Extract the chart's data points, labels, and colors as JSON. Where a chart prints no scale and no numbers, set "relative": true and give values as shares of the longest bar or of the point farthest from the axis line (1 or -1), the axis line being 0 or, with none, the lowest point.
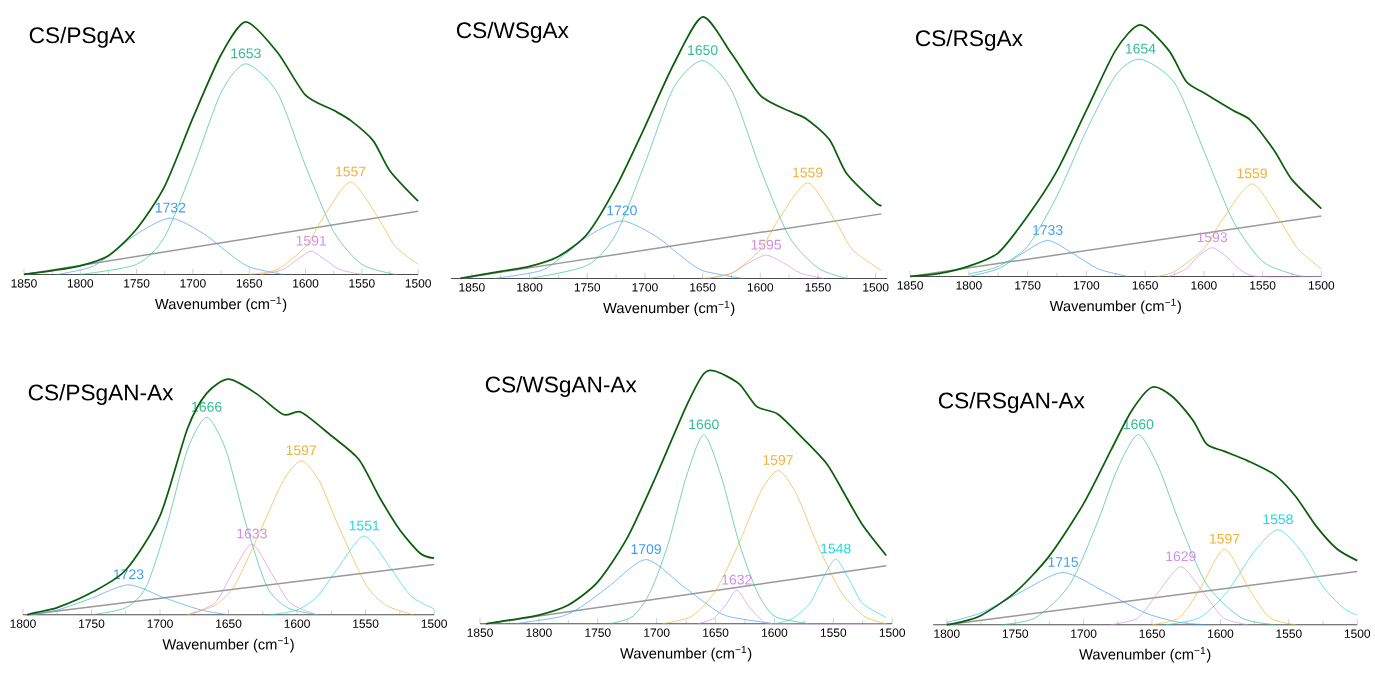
{
  "chart_data": [
    {
      "type": "line",
      "relative": true,
      "title": "CS/PSgAx",
      "xlabel": "Wavenumber (cm$^{−1}$)",
      "xlim": [
        1850,
        1500
      ],
      "xticks": [
        1850,
        1800,
        1750,
        1700,
        1650,
        1600,
        1550,
        1500
      ],
      "series": [
        {
          "color": "#999999",
          "x": [
            1850,
            1500
          ],
          "values": [
            0,
            0.25
          ]
        },
        {
          "name": "1732",
          "color": "#3d9df0",
          "x": [
            1820,
            1790,
            1770,
            1750,
            1720,
            1690,
            1670,
            1650,
            1620
          ],
          "values": [
            0,
            0.03,
            0.09,
            0.16,
            0.223,
            0.16,
            0.09,
            0.03,
            0
          ]
        },
        {
          "name": "1653",
          "color": "#2fbf8c",
          "x": [
            1800,
            1750,
            1725,
            1700,
            1675,
            1653,
            1625,
            1600,
            1575,
            1550,
            1520
          ],
          "values": [
            0,
            0.04,
            0.15,
            0.42,
            0.72,
            0.834,
            0.72,
            0.43,
            0.17,
            0.04,
            0
          ]
        },
        {
          "name": "1591",
          "color": "#d08ee8",
          "x": [
            1640,
            1620,
            1607,
            1595,
            1583,
            1570,
            1550
          ],
          "values": [
            0,
            0.02,
            0.06,
            0.092,
            0.06,
            0.02,
            0
          ]
        },
        {
          "name": "1557",
          "color": "#f0b030",
          "x": [
            1650,
            1625,
            1600,
            1585,
            1560,
            1535,
            1520,
            1500
          ],
          "values": [
            0,
            0.02,
            0.11,
            0.22,
            0.366,
            0.22,
            0.11,
            0.04
          ]
        },
        {
          "color": "#0b5e0b",
          "x": [
            1850,
            1825,
            1800,
            1775,
            1750,
            1725,
            1700,
            1675,
            1653,
            1625,
            1600,
            1575,
            1560,
            1540,
            1525,
            1500
          ],
          "values": [
            0,
            0.015,
            0.034,
            0.074,
            0.18,
            0.35,
            0.62,
            0.87,
            1.0,
            0.88,
            0.71,
            0.65,
            0.61,
            0.53,
            0.41,
            0.29
          ]
        }
      ]
    },
    {
      "type": "line",
      "relative": true,
      "title": "CS/WSgAx",
      "xlabel": "Wavenumber (cm$^{−1}$)",
      "xlim": [
        1868,
        1490
      ],
      "xticks": [
        1850,
        1800,
        1750,
        1700,
        1650,
        1600,
        1550,
        1500
      ],
      "series": [
        {
          "color": "#999999",
          "x": [
            1860,
            1495
          ],
          "values": [
            0,
            0.247
          ]
        },
        {
          "name": "1720",
          "color": "#3d9df0",
          "x": [
            1830,
            1790,
            1770,
            1750,
            1720,
            1690,
            1670,
            1650,
            1615
          ],
          "values": [
            0,
            0.03,
            0.09,
            0.16,
            0.22,
            0.16,
            0.09,
            0.03,
            0
          ]
        },
        {
          "name": "1650",
          "color": "#2fbf8c",
          "x": [
            1800,
            1750,
            1725,
            1700,
            1675,
            1650,
            1625,
            1600,
            1575,
            1550,
            1525
          ],
          "values": [
            0,
            0.05,
            0.17,
            0.44,
            0.73,
            0.833,
            0.72,
            0.42,
            0.16,
            0.04,
            0
          ]
        },
        {
          "name": "1595",
          "color": "#d08ee8",
          "x": [
            1645,
            1625,
            1610,
            1595,
            1580,
            1565,
            1545
          ],
          "values": [
            0,
            0.02,
            0.06,
            0.089,
            0.06,
            0.02,
            0
          ]
        },
        {
          "name": "1559",
          "color": "#f0b030",
          "x": [
            1650,
            1625,
            1600,
            1585,
            1559,
            1535,
            1520,
            1495
          ],
          "values": [
            0,
            0.02,
            0.11,
            0.22,
            0.365,
            0.22,
            0.11,
            0.03
          ]
        },
        {
          "color": "#0b5e0b",
          "x": [
            1860,
            1825,
            1800,
            1775,
            1750,
            1725,
            1700,
            1675,
            1650,
            1625,
            1600,
            1575,
            1560,
            1540,
            1525,
            1500,
            1495
          ],
          "values": [
            0,
            0.027,
            0.046,
            0.084,
            0.17,
            0.35,
            0.58,
            0.82,
            1.0,
            0.86,
            0.7,
            0.64,
            0.61,
            0.53,
            0.4,
            0.29,
            0.28
          ]
        }
      ]
    },
    {
      "type": "line",
      "relative": true,
      "title": "CS/RSgAx",
      "xlabel": "Wavenumber (cm$^{−1}$)",
      "xlim": [
        1850,
        1500
      ],
      "xticks": [
        1850,
        1800,
        1750,
        1700,
        1650,
        1600,
        1550,
        1500
      ],
      "series": [
        {
          "color": "#999999",
          "x": [
            1850,
            1500
          ],
          "values": [
            0,
            0.24
          ]
        },
        {
          "name": "1733",
          "color": "#3d9df0",
          "x": [
            1800,
            1775,
            1755,
            1733,
            1711,
            1690,
            1665
          ],
          "values": [
            0,
            0.03,
            0.09,
            0.143,
            0.09,
            0.03,
            0
          ]
        },
        {
          "name": "1654",
          "color": "#2fbf8c",
          "x": [
            1800,
            1775,
            1750,
            1725,
            1700,
            1675,
            1654,
            1625,
            1600,
            1575,
            1550,
            1525,
            1515
          ],
          "values": [
            0.01,
            0.04,
            0.12,
            0.32,
            0.58,
            0.8,
            0.864,
            0.77,
            0.5,
            0.22,
            0.06,
            0.01,
            0
          ]
        },
        {
          "name": "1593",
          "color": "#d08ee8",
          "x": [
            1630,
            1615,
            1605,
            1593,
            1581,
            1570,
            1555,
            1500
          ],
          "values": [
            0,
            0.03,
            0.08,
            0.114,
            0.08,
            0.03,
            0,
            0
          ]
        },
        {
          "name": "1559",
          "color": "#f0b030",
          "x": [
            1640,
            1625,
            1600,
            1585,
            1559,
            1535,
            1520,
            1500
          ],
          "values": [
            0,
            0.02,
            0.11,
            0.22,
            0.368,
            0.22,
            0.11,
            0.03
          ]
        },
        {
          "color": "#0b5e0b",
          "x": [
            1850,
            1825,
            1800,
            1775,
            1750,
            1725,
            1700,
            1675,
            1654,
            1630,
            1615,
            1600,
            1575,
            1560,
            1540,
            1525,
            1500
          ],
          "values": [
            0,
            0.012,
            0.041,
            0.094,
            0.24,
            0.42,
            0.66,
            0.9,
            1.0,
            0.9,
            0.775,
            0.73,
            0.66,
            0.62,
            0.5,
            0.385,
            0.27
          ]
        }
      ]
    },
    {
      "type": "line",
      "relative": true,
      "title": "CS/PSgAN-Ax",
      "xlabel": "Wavenumber (cm$^{−1}$)",
      "xlim": [
        1800,
        1500
      ],
      "xticks": [
        1800,
        1750,
        1700,
        1650,
        1600,
        1550,
        1500
      ],
      "series": [
        {
          "color": "#999999",
          "x": [
            1797,
            1500
          ],
          "values": [
            0,
            0.213
          ]
        },
        {
          "name": "1723",
          "color": "#3d9df0",
          "x": [
            1795,
            1775,
            1750,
            1723,
            1696,
            1670,
            1650
          ],
          "values": [
            0,
            0.02,
            0.07,
            0.127,
            0.07,
            0.02,
            0
          ]
        },
        {
          "name": "1666",
          "color": "#2fbf8c",
          "x": [
            1750,
            1725,
            1710,
            1695,
            1680,
            1666,
            1652,
            1637,
            1622,
            1607,
            1585
          ],
          "values": [
            0,
            0.03,
            0.12,
            0.38,
            0.7,
            0.838,
            0.7,
            0.38,
            0.12,
            0.03,
            0
          ]
        },
        {
          "name": "1633",
          "color": "#d08ee8",
          "x": [
            1680,
            1660,
            1647,
            1633,
            1619,
            1605,
            1585
          ],
          "values": [
            0,
            0.05,
            0.18,
            0.3,
            0.18,
            0.05,
            0
          ]
        },
        {
          "name": "1597",
          "color": "#f0b030",
          "x": [
            1680,
            1660,
            1645,
            1625,
            1610,
            1597,
            1584,
            1570,
            1550,
            1535,
            1515
          ],
          "values": [
            0,
            0.04,
            0.13,
            0.38,
            0.57,
            0.654,
            0.57,
            0.38,
            0.13,
            0.04,
            0
          ]
        },
        {
          "name": "1551",
          "color": "#22d8e0",
          "x": [
            1620,
            1600,
            1585,
            1570,
            1551,
            1532,
            1517,
            1500
          ],
          "values": [
            0,
            0.02,
            0.08,
            0.2,
            0.334,
            0.2,
            0.08,
            0.025
          ]
        },
        {
          "color": "#0b5e0b",
          "x": [
            1797,
            1790,
            1775,
            1750,
            1725,
            1700,
            1680,
            1666,
            1650,
            1630,
            1610,
            1597,
            1575,
            1555,
            1540,
            1525,
            1510,
            1500
          ],
          "values": [
            0,
            0.01,
            0.03,
            0.094,
            0.19,
            0.42,
            0.79,
            0.94,
            1.0,
            0.94,
            0.85,
            0.86,
            0.76,
            0.66,
            0.5,
            0.36,
            0.26,
            0.24
          ]
        }
      ]
    },
    {
      "type": "line",
      "relative": true,
      "title": "CS/WSgAN-Ax",
      "xlabel": "Wavenumber (cm$^{−1}$)",
      "xlim": [
        1850,
        1500
      ],
      "xticks": [
        1850,
        1800,
        1750,
        1700,
        1650,
        1600,
        1550,
        1500
      ],
      "series": [
        {
          "color": "#999999",
          "x": [
            1845,
            1505
          ],
          "values": [
            0,
            0.23
          ]
        },
        {
          "name": "1709",
          "color": "#3d9df0",
          "x": [
            1820,
            1780,
            1760,
            1740,
            1709,
            1678,
            1658,
            1640,
            1600
          ],
          "values": [
            0,
            0.03,
            0.08,
            0.15,
            0.254,
            0.15,
            0.08,
            0.03,
            0
          ]
        },
        {
          "name": "1660",
          "color": "#2fbf8c",
          "x": [
            1740,
            1720,
            1705,
            1690,
            1675,
            1660,
            1645,
            1630,
            1615,
            1600,
            1570
          ],
          "values": [
            0,
            0.03,
            0.13,
            0.32,
            0.58,
            0.748,
            0.58,
            0.32,
            0.13,
            0.03,
            0
          ]
        },
        {
          "name": "1632",
          "color": "#d08ee8",
          "x": [
            1665,
            1652,
            1642,
            1632,
            1622,
            1612,
            1600,
            1505
          ],
          "values": [
            0,
            0.02,
            0.07,
            0.133,
            0.07,
            0.02,
            0,
            0
          ]
        },
        {
          "name": "1597",
          "color": "#f0b030",
          "x": [
            1695,
            1670,
            1650,
            1630,
            1612,
            1597,
            1582,
            1564,
            1544,
            1524,
            1505
          ],
          "values": [
            0,
            0.03,
            0.13,
            0.32,
            0.52,
            0.607,
            0.52,
            0.32,
            0.13,
            0.03,
            0
          ]
        },
        {
          "name": "1548",
          "color": "#22d8e0",
          "x": [
            1600,
            1585,
            1570,
            1560,
            1548,
            1536,
            1525,
            1505
          ],
          "values": [
            0,
            0.02,
            0.08,
            0.17,
            0.256,
            0.17,
            0.08,
            0.025
          ]
        },
        {
          "color": "#0b5e0b",
          "x": [
            1845,
            1825,
            1800,
            1775,
            1750,
            1725,
            1700,
            1675,
            1660,
            1650,
            1630,
            1615,
            1597,
            1575,
            1555,
            1540,
            1525,
            1505
          ],
          "values": [
            0,
            0.014,
            0.034,
            0.074,
            0.166,
            0.34,
            0.59,
            0.86,
            0.99,
            1.0,
            0.95,
            0.86,
            0.83,
            0.73,
            0.63,
            0.51,
            0.39,
            0.27
          ]
        }
      ]
    },
    {
      "type": "line",
      "relative": true,
      "title": "CS/RSgAN-Ax",
      "xlabel": "Wavenumber (cm$^{−1}$)",
      "xlim": [
        1810,
        1500
      ],
      "xticks": [
        1800,
        1750,
        1700,
        1650,
        1600,
        1550,
        1500
      ],
      "series": [
        {
          "color": "#999999",
          "x": [
            1800,
            1500
          ],
          "values": [
            0,
            0.224
          ]
        },
        {
          "name": "1715",
          "color": "#3d9df0",
          "x": [
            1800,
            1775,
            1745,
            1715,
            1685,
            1655,
            1630,
            1610
          ],
          "values": [
            0.01,
            0.05,
            0.14,
            0.22,
            0.14,
            0.05,
            0.01,
            0
          ]
        },
        {
          "name": "1660",
          "color": "#2fbf8c",
          "x": [
            1760,
            1735,
            1710,
            1690,
            1675,
            1660,
            1645,
            1630,
            1610,
            1585,
            1560
          ],
          "values": [
            0,
            0.03,
            0.17,
            0.43,
            0.66,
            0.8,
            0.66,
            0.43,
            0.17,
            0.03,
            0
          ]
        },
        {
          "name": "1629",
          "color": "#d08ee8",
          "x": [
            1680,
            1660,
            1645,
            1629,
            1613,
            1598,
            1580
          ],
          "values": [
            0,
            0.03,
            0.14,
            0.244,
            0.14,
            0.03,
            0
          ]
        },
        {
          "name": "1597",
          "color": "#f0b030",
          "x": [
            1650,
            1630,
            1615,
            1597,
            1579,
            1564,
            1545
          ],
          "values": [
            0,
            0.03,
            0.15,
            0.318,
            0.15,
            0.03,
            0
          ]
        },
        {
          "name": "1558",
          "color": "#22d8e0",
          "x": [
            1640,
            1615,
            1595,
            1575,
            1558,
            1541,
            1525,
            1510,
            1500
          ],
          "values": [
            0,
            0.03,
            0.14,
            0.31,
            0.4,
            0.31,
            0.16,
            0.07,
            0.04
          ]
        },
        {
          "color": "#0b5e0b",
          "x": [
            1800,
            1790,
            1775,
            1750,
            1725,
            1700,
            1680,
            1665,
            1650,
            1635,
            1620,
            1610,
            1597,
            1580,
            1560,
            1545,
            1530,
            1515,
            1500
          ],
          "values": [
            0,
            0.011,
            0.039,
            0.136,
            0.29,
            0.51,
            0.735,
            0.9,
            1.0,
            0.96,
            0.86,
            0.76,
            0.73,
            0.69,
            0.63,
            0.54,
            0.415,
            0.32,
            0.27
          ]
        }
      ]
    }
  ]
}
